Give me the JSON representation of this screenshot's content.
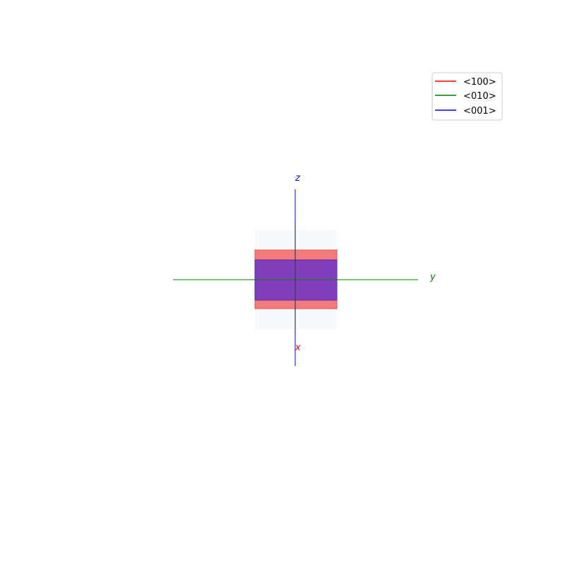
{
  "axes": {
    "x": {
      "label": "x",
      "color": "#e8001c"
    },
    "y": {
      "label": "y",
      "color": "#008000"
    },
    "z": {
      "label": "z",
      "color": "#0000ff"
    }
  },
  "legend": {
    "entries": [
      {
        "label": "<100>",
        "color": "#ff0000"
      },
      {
        "label": "<010>",
        "color": "#008000"
      },
      {
        "label": "<001>",
        "color": "#0000ff"
      }
    ]
  },
  "colors": {
    "red_face": "#f26d6d",
    "purple_face": "#7a3bbf",
    "ghost_face": "#eef2f6"
  }
}
